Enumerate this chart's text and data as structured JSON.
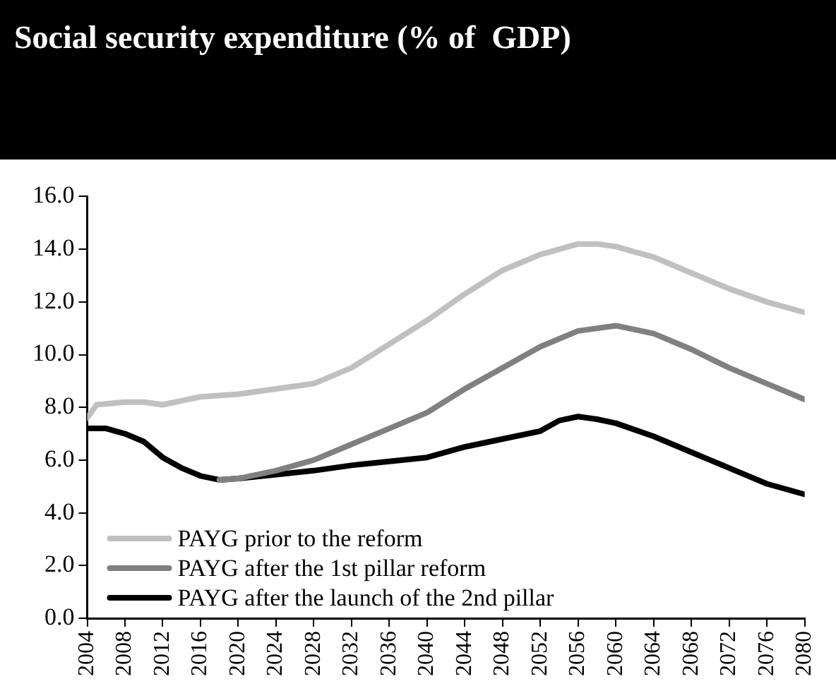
{
  "chart_data": {
    "type": "line",
    "title": "Social security expenditure (% of  GDP)",
    "xlim": [
      2004,
      2080
    ],
    "xticks": [
      2004,
      2008,
      2012,
      2016,
      2020,
      2024,
      2028,
      2032,
      2036,
      2040,
      2044,
      2048,
      2052,
      2056,
      2060,
      2064,
      2068,
      2072,
      2076,
      2080
    ],
    "ylim": [
      0,
      16
    ],
    "yticks": [
      {
        "value": 0,
        "label": "0.0"
      },
      {
        "value": 2,
        "label": "2.0"
      },
      {
        "value": 4,
        "label": "4.0"
      },
      {
        "value": 6,
        "label": "6.0"
      },
      {
        "value": 8,
        "label": "8.0"
      },
      {
        "value": 10,
        "label": "10.0"
      },
      {
        "value": 12,
        "label": "12.0"
      },
      {
        "value": 14,
        "label": "14.0"
      },
      {
        "value": 16,
        "label": "16.0"
      }
    ],
    "grid": false,
    "legend": "bottom left",
    "marker": "none",
    "line_style": "solid",
    "series": [
      {
        "name": "PAYG prior to the reform",
        "color": "#c0c0c0",
        "x": [
          2004,
          2005,
          2008,
          2010,
          2012,
          2016,
          2020,
          2024,
          2028,
          2032,
          2036,
          2040,
          2044,
          2048,
          2052,
          2056,
          2058,
          2060,
          2064,
          2068,
          2072,
          2076,
          2080
        ],
        "values": [
          7.6,
          8.1,
          8.2,
          8.2,
          8.1,
          8.4,
          8.5,
          8.7,
          8.9,
          9.5,
          10.4,
          11.3,
          12.3,
          13.2,
          13.8,
          14.2,
          14.2,
          14.1,
          13.7,
          13.1,
          12.5,
          12.0,
          11.6
        ]
      },
      {
        "name": "PAYG after the 1st pillar reform",
        "color": "#808080",
        "x": [
          2018,
          2020,
          2024,
          2028,
          2032,
          2036,
          2040,
          2044,
          2048,
          2052,
          2056,
          2060,
          2064,
          2068,
          2072,
          2076,
          2080
        ],
        "values": [
          5.25,
          5.3,
          5.6,
          6.0,
          6.6,
          7.2,
          7.8,
          8.7,
          9.5,
          10.3,
          10.9,
          11.1,
          10.8,
          10.2,
          9.5,
          8.9,
          8.3
        ]
      },
      {
        "name": "PAYG after the launch of the 2nd pillar",
        "color": "#000000",
        "x": [
          2004,
          2006,
          2008,
          2010,
          2012,
          2014,
          2016,
          2018,
          2020,
          2024,
          2028,
          2032,
          2036,
          2040,
          2044,
          2048,
          2052,
          2054,
          2056,
          2058,
          2060,
          2064,
          2068,
          2072,
          2076,
          2080
        ],
        "values": [
          7.2,
          7.2,
          7.0,
          6.7,
          6.1,
          5.7,
          5.4,
          5.25,
          5.3,
          5.45,
          5.6,
          5.8,
          5.95,
          6.1,
          6.5,
          6.8,
          7.1,
          7.5,
          7.65,
          7.55,
          7.4,
          6.9,
          6.3,
          5.7,
          5.1,
          4.7
        ]
      }
    ]
  }
}
